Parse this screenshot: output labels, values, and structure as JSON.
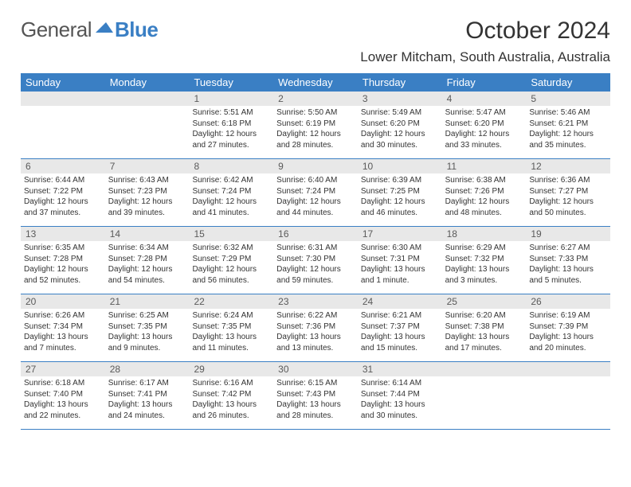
{
  "logo": {
    "general": "General",
    "blue": "Blue"
  },
  "header": {
    "month_title": "October 2024",
    "location": "Lower Mitcham, South Australia, Australia"
  },
  "colors": {
    "brand_blue": "#3a7fc4",
    "daynum_bg": "#e8e8e8",
    "text": "#333333"
  },
  "weekdays": [
    "Sunday",
    "Monday",
    "Tuesday",
    "Wednesday",
    "Thursday",
    "Friday",
    "Saturday"
  ],
  "weeks": [
    [
      null,
      null,
      {
        "n": "1",
        "sr": "Sunrise: 5:51 AM",
        "ss": "Sunset: 6:18 PM",
        "d1": "Daylight: 12 hours",
        "d2": "and 27 minutes."
      },
      {
        "n": "2",
        "sr": "Sunrise: 5:50 AM",
        "ss": "Sunset: 6:19 PM",
        "d1": "Daylight: 12 hours",
        "d2": "and 28 minutes."
      },
      {
        "n": "3",
        "sr": "Sunrise: 5:49 AM",
        "ss": "Sunset: 6:20 PM",
        "d1": "Daylight: 12 hours",
        "d2": "and 30 minutes."
      },
      {
        "n": "4",
        "sr": "Sunrise: 5:47 AM",
        "ss": "Sunset: 6:20 PM",
        "d1": "Daylight: 12 hours",
        "d2": "and 33 minutes."
      },
      {
        "n": "5",
        "sr": "Sunrise: 5:46 AM",
        "ss": "Sunset: 6:21 PM",
        "d1": "Daylight: 12 hours",
        "d2": "and 35 minutes."
      }
    ],
    [
      {
        "n": "6",
        "sr": "Sunrise: 6:44 AM",
        "ss": "Sunset: 7:22 PM",
        "d1": "Daylight: 12 hours",
        "d2": "and 37 minutes."
      },
      {
        "n": "7",
        "sr": "Sunrise: 6:43 AM",
        "ss": "Sunset: 7:23 PM",
        "d1": "Daylight: 12 hours",
        "d2": "and 39 minutes."
      },
      {
        "n": "8",
        "sr": "Sunrise: 6:42 AM",
        "ss": "Sunset: 7:24 PM",
        "d1": "Daylight: 12 hours",
        "d2": "and 41 minutes."
      },
      {
        "n": "9",
        "sr": "Sunrise: 6:40 AM",
        "ss": "Sunset: 7:24 PM",
        "d1": "Daylight: 12 hours",
        "d2": "and 44 minutes."
      },
      {
        "n": "10",
        "sr": "Sunrise: 6:39 AM",
        "ss": "Sunset: 7:25 PM",
        "d1": "Daylight: 12 hours",
        "d2": "and 46 minutes."
      },
      {
        "n": "11",
        "sr": "Sunrise: 6:38 AM",
        "ss": "Sunset: 7:26 PM",
        "d1": "Daylight: 12 hours",
        "d2": "and 48 minutes."
      },
      {
        "n": "12",
        "sr": "Sunrise: 6:36 AM",
        "ss": "Sunset: 7:27 PM",
        "d1": "Daylight: 12 hours",
        "d2": "and 50 minutes."
      }
    ],
    [
      {
        "n": "13",
        "sr": "Sunrise: 6:35 AM",
        "ss": "Sunset: 7:28 PM",
        "d1": "Daylight: 12 hours",
        "d2": "and 52 minutes."
      },
      {
        "n": "14",
        "sr": "Sunrise: 6:34 AM",
        "ss": "Sunset: 7:28 PM",
        "d1": "Daylight: 12 hours",
        "d2": "and 54 minutes."
      },
      {
        "n": "15",
        "sr": "Sunrise: 6:32 AM",
        "ss": "Sunset: 7:29 PM",
        "d1": "Daylight: 12 hours",
        "d2": "and 56 minutes."
      },
      {
        "n": "16",
        "sr": "Sunrise: 6:31 AM",
        "ss": "Sunset: 7:30 PM",
        "d1": "Daylight: 12 hours",
        "d2": "and 59 minutes."
      },
      {
        "n": "17",
        "sr": "Sunrise: 6:30 AM",
        "ss": "Sunset: 7:31 PM",
        "d1": "Daylight: 13 hours",
        "d2": "and 1 minute."
      },
      {
        "n": "18",
        "sr": "Sunrise: 6:29 AM",
        "ss": "Sunset: 7:32 PM",
        "d1": "Daylight: 13 hours",
        "d2": "and 3 minutes."
      },
      {
        "n": "19",
        "sr": "Sunrise: 6:27 AM",
        "ss": "Sunset: 7:33 PM",
        "d1": "Daylight: 13 hours",
        "d2": "and 5 minutes."
      }
    ],
    [
      {
        "n": "20",
        "sr": "Sunrise: 6:26 AM",
        "ss": "Sunset: 7:34 PM",
        "d1": "Daylight: 13 hours",
        "d2": "and 7 minutes."
      },
      {
        "n": "21",
        "sr": "Sunrise: 6:25 AM",
        "ss": "Sunset: 7:35 PM",
        "d1": "Daylight: 13 hours",
        "d2": "and 9 minutes."
      },
      {
        "n": "22",
        "sr": "Sunrise: 6:24 AM",
        "ss": "Sunset: 7:35 PM",
        "d1": "Daylight: 13 hours",
        "d2": "and 11 minutes."
      },
      {
        "n": "23",
        "sr": "Sunrise: 6:22 AM",
        "ss": "Sunset: 7:36 PM",
        "d1": "Daylight: 13 hours",
        "d2": "and 13 minutes."
      },
      {
        "n": "24",
        "sr": "Sunrise: 6:21 AM",
        "ss": "Sunset: 7:37 PM",
        "d1": "Daylight: 13 hours",
        "d2": "and 15 minutes."
      },
      {
        "n": "25",
        "sr": "Sunrise: 6:20 AM",
        "ss": "Sunset: 7:38 PM",
        "d1": "Daylight: 13 hours",
        "d2": "and 17 minutes."
      },
      {
        "n": "26",
        "sr": "Sunrise: 6:19 AM",
        "ss": "Sunset: 7:39 PM",
        "d1": "Daylight: 13 hours",
        "d2": "and 20 minutes."
      }
    ],
    [
      {
        "n": "27",
        "sr": "Sunrise: 6:18 AM",
        "ss": "Sunset: 7:40 PM",
        "d1": "Daylight: 13 hours",
        "d2": "and 22 minutes."
      },
      {
        "n": "28",
        "sr": "Sunrise: 6:17 AM",
        "ss": "Sunset: 7:41 PM",
        "d1": "Daylight: 13 hours",
        "d2": "and 24 minutes."
      },
      {
        "n": "29",
        "sr": "Sunrise: 6:16 AM",
        "ss": "Sunset: 7:42 PM",
        "d1": "Daylight: 13 hours",
        "d2": "and 26 minutes."
      },
      {
        "n": "30",
        "sr": "Sunrise: 6:15 AM",
        "ss": "Sunset: 7:43 PM",
        "d1": "Daylight: 13 hours",
        "d2": "and 28 minutes."
      },
      {
        "n": "31",
        "sr": "Sunrise: 6:14 AM",
        "ss": "Sunset: 7:44 PM",
        "d1": "Daylight: 13 hours",
        "d2": "and 30 minutes."
      },
      null,
      null
    ]
  ]
}
